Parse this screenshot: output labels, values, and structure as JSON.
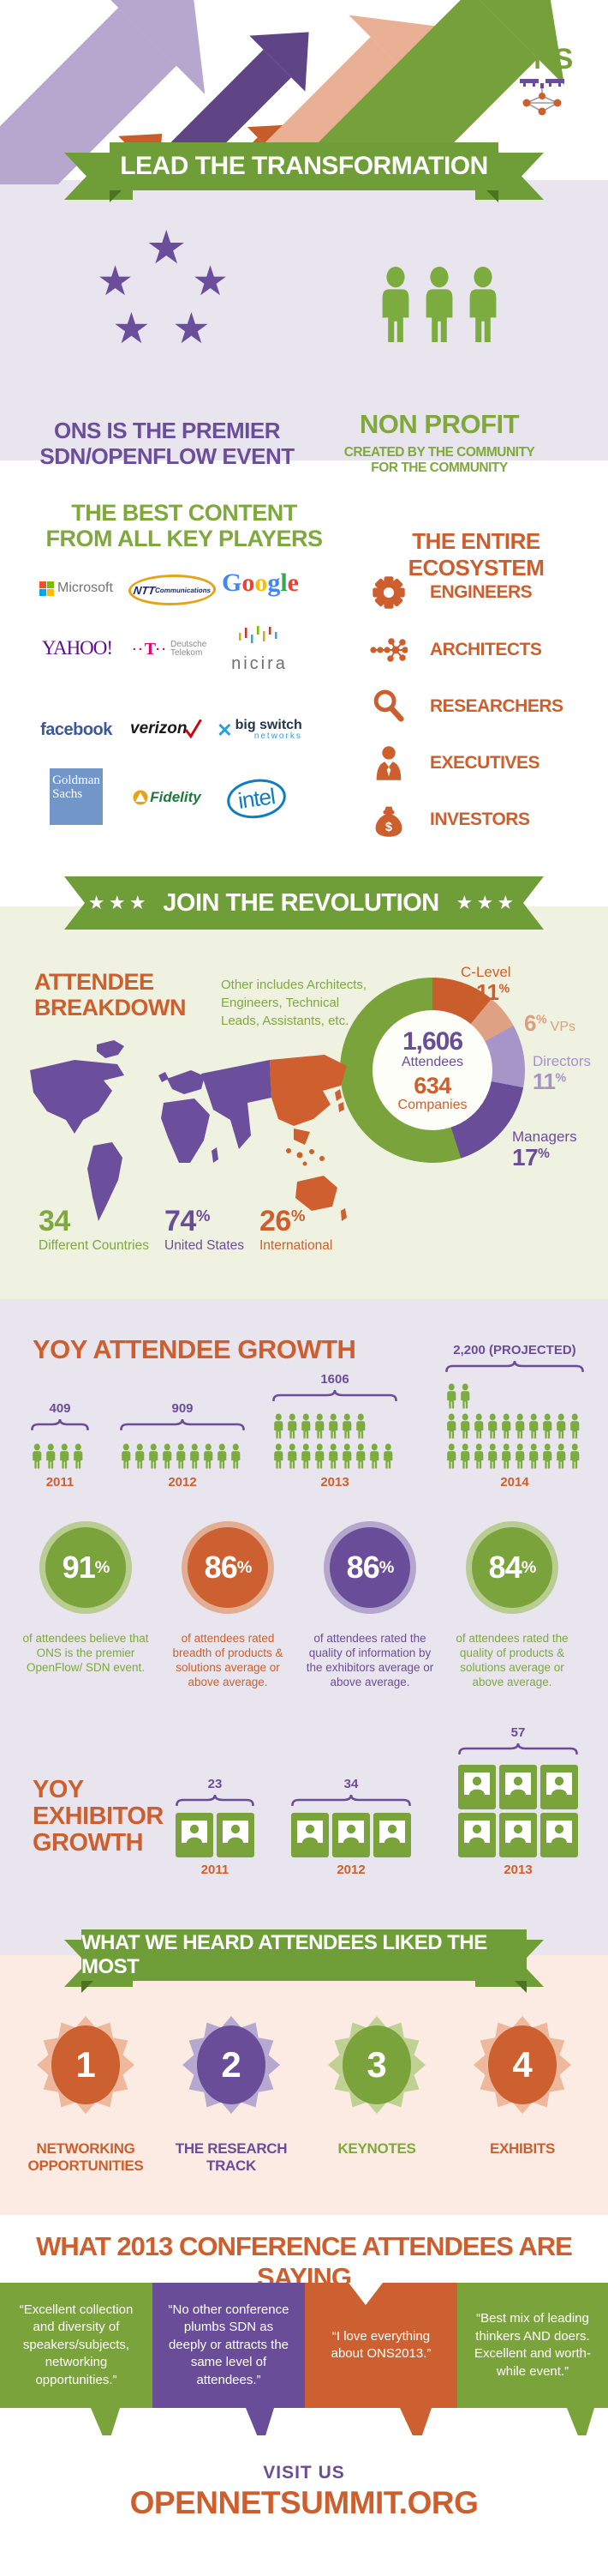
{
  "logo": {
    "text": "ONS"
  },
  "header": {
    "banner": "LEAD THE TRANSFORMATION"
  },
  "intro": {
    "premier_line1": "ONS IS THE PREMIER",
    "premier_line2": "SDN/OPENFLOW EVENT",
    "nonprofit_title": "NON PROFIT",
    "nonprofit_line1": "CREATED BY THE COMMUNITY",
    "nonprofit_line2": "FOR THE COMMUNITY"
  },
  "content": {
    "left_title_line1": "THE BEST CONTENT",
    "left_title_line2": "FROM ALL KEY PLAYERS",
    "right_title": "THE ENTIRE ECOSYSTEM",
    "logos": {
      "microsoft": "Microsoft",
      "ntt": "NTT",
      "ntt_sub": "Communications",
      "google": "Google",
      "yahoo": "YAHOO!",
      "dt_t": "T",
      "dt_line1": "Deutsche",
      "dt_line2": "Telekom",
      "nicira": "nicira",
      "facebook": "facebook",
      "verizon": "verizon",
      "bigswitch_line1": "big switch",
      "bigswitch_line2": "networks",
      "goldman_line1": "Goldman",
      "goldman_line2": "Sachs",
      "fidelity": "Fidelity",
      "intel": "intel"
    },
    "ecosystem": [
      {
        "label": "ENGINEERS",
        "icon": "gear"
      },
      {
        "label": "ARCHITECTS",
        "icon": "network"
      },
      {
        "label": "RESEARCHERS",
        "icon": "magnifier"
      },
      {
        "label": "EXECUTIVES",
        "icon": "executive"
      },
      {
        "label": "INVESTORS",
        "icon": "money-bag"
      }
    ]
  },
  "revolution": {
    "banner": "JOIN THE REVOLUTION"
  },
  "attendee": {
    "title_line1": "ATTENDEE",
    "title_line2": "BREAKDOWN",
    "note": "Other includes Architects, Engineers, Technical Leads, Assistants, etc.",
    "center_attendees_value": "1,606",
    "center_attendees_label": "Attendees",
    "center_companies_value": "634",
    "center_companies_label": "Companies",
    "slices": [
      {
        "name": "C-Level",
        "pct": "11"
      },
      {
        "name": "VPs",
        "pct": "6"
      },
      {
        "name": "Directors",
        "pct": "11"
      },
      {
        "name": "Managers",
        "pct": "17"
      }
    ],
    "percent_sign": "%",
    "stats": [
      {
        "value": "34",
        "suffix": "",
        "label": "Different Countries"
      },
      {
        "value": "74",
        "suffix": "%",
        "label": "United States"
      },
      {
        "value": "26",
        "suffix": "%",
        "label": "International"
      }
    ]
  },
  "yoy_attendee": {
    "title": "YOY ATTENDEE GROWTH",
    "groups": [
      {
        "year": "2011",
        "label": "409",
        "rows": [
          4
        ]
      },
      {
        "year": "2012",
        "label": "909",
        "rows": [
          9
        ]
      },
      {
        "year": "2013",
        "label": "1606",
        "rows": [
          7,
          9
        ]
      },
      {
        "year": "2014",
        "label": "2,200 (PROJECTED)",
        "rows": [
          2,
          10,
          10
        ]
      }
    ]
  },
  "ratings": [
    {
      "pct": "91",
      "text": "of attendees believe that ONS is the premier OpenFlow/ SDN event."
    },
    {
      "pct": "86",
      "text": "of attendees rated breadth of products & solutions average or above average."
    },
    {
      "pct": "86",
      "text": "of attendees rated the quality of information by the exhibitors average or above average."
    },
    {
      "pct": "84",
      "text": "of attendees rated the quality of products & solutions average or above average."
    }
  ],
  "yoy_exhibitor": {
    "title_line1": "YOY",
    "title_line2": "EXHIBITOR",
    "title_line3": "GROWTH",
    "groups": [
      {
        "year": "2011",
        "label": "23",
        "booths": 2,
        "cols": 2
      },
      {
        "year": "2012",
        "label": "34",
        "booths": 3,
        "cols": 3
      },
      {
        "year": "2013",
        "label": "57",
        "booths": 6,
        "cols": 3
      }
    ]
  },
  "liked": {
    "banner": "WHAT WE HEARD ATTENDEES LIKED THE MOST",
    "items": [
      {
        "num": "1",
        "label_line1": "NETWORKING",
        "label_line2": "OPPORTUNITIES"
      },
      {
        "num": "2",
        "label_line1": "THE RESEARCH",
        "label_line2": "TRACK"
      },
      {
        "num": "3",
        "label_line1": "KEYNOTES",
        "label_line2": ""
      },
      {
        "num": "4",
        "label_line1": "EXHIBITS",
        "label_line2": ""
      }
    ]
  },
  "saying": {
    "title": "WHAT 2013 CONFERENCE ATTENDEES ARE SAYING",
    "quotes": [
      {
        "text": "“Excellent collection and diversity of speakers/subjects, networking opportunities.”"
      },
      {
        "text": "“No other conference plumbs SDN as deeply or attracts the same level of attendees.”"
      },
      {
        "text": "“I love everything about ONS2013.”"
      },
      {
        "text": "“Best mix of leading thinkers AND doers. Excellent and worth- while event.”"
      }
    ]
  },
  "footer": {
    "visit": "VISIT US",
    "url": "OPENNETSUMMIT.ORG"
  },
  "colors": {
    "green": "#7aa43b",
    "green_text": "#7fa83d",
    "orange": "#cd5f2e",
    "salmon": "#dfa184",
    "purple": "#6a4d99",
    "light_purple": "#a695c6",
    "lavender_bg": "#e9e5ee",
    "cream_bg": "#f0f2e1",
    "pink_bg": "#fbebe2",
    "ribbon_green": "#6f9e38"
  },
  "chart_data": [
    {
      "type": "pie",
      "title": "Attendee Breakdown",
      "labels": [
        "C-Level",
        "VPs",
        "Directors",
        "Managers",
        "Other"
      ],
      "values": [
        11,
        6,
        11,
        17,
        55
      ],
      "colors": [
        "#c95e2c",
        "#dfa184",
        "#a695c6",
        "#6a4d99",
        "#7aa43b"
      ],
      "center": {
        "attendees": "1,606",
        "companies": "634"
      },
      "note": "Other includes Architects, Engineers, Technical Leads, Assistants, etc.",
      "legend_position": "right"
    },
    {
      "type": "bar",
      "title": "YOY Attendee Growth",
      "categories": [
        "2011",
        "2012",
        "2013",
        "2014"
      ],
      "values": [
        409,
        909,
        1606,
        2200
      ],
      "annotations": [
        "409",
        "909",
        "1606",
        "2,200 (PROJECTED)"
      ]
    },
    {
      "type": "bar",
      "title": "YOY Exhibitor Growth",
      "categories": [
        "2011",
        "2012",
        "2013"
      ],
      "values": [
        23,
        34,
        57
      ]
    }
  ]
}
